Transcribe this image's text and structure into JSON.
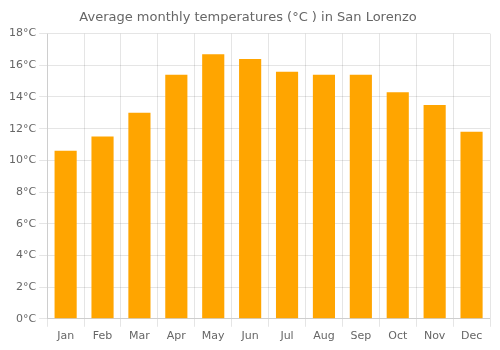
{
  "chart_data": {
    "type": "bar",
    "title": "Average monthly temperatures (°C ) in San Lorenzo",
    "categories": [
      "Jan",
      "Feb",
      "Mar",
      "Apr",
      "May",
      "Jun",
      "Jul",
      "Aug",
      "Sep",
      "Oct",
      "Nov",
      "Dec"
    ],
    "values": [
      10.6,
      11.5,
      13.0,
      15.4,
      16.7,
      16.4,
      15.6,
      15.4,
      15.4,
      14.3,
      13.5,
      11.8
    ],
    "color": "#FFA500",
    "ylim": [
      0,
      18
    ],
    "yticks": [
      {
        "value": 0,
        "label": "0°C"
      },
      {
        "value": 2,
        "label": "2°C"
      },
      {
        "value": 4,
        "label": "4°C"
      },
      {
        "value": 6,
        "label": "6°C"
      },
      {
        "value": 8,
        "label": "8°C"
      },
      {
        "value": 10,
        "label": "10°C"
      },
      {
        "value": 12,
        "label": "12°C"
      },
      {
        "value": 14,
        "label": "14°C"
      },
      {
        "value": 16,
        "label": "16°C"
      },
      {
        "value": 18,
        "label": "18°C"
      }
    ],
    "grid": true
  }
}
